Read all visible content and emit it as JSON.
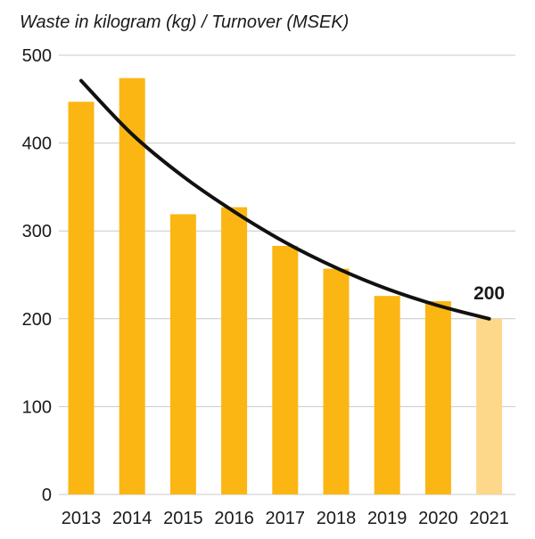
{
  "chart_data": {
    "type": "bar",
    "title": "Waste in kilogram (kg) / Turnover (MSEK)",
    "xlabel": "",
    "ylabel": "",
    "categories": [
      "2013",
      "2014",
      "2015",
      "2016",
      "2017",
      "2018",
      "2019",
      "2020",
      "2021"
    ],
    "values": [
      447,
      474,
      319,
      327,
      283,
      257,
      226,
      220,
      200
    ],
    "ylim": [
      0,
      500
    ],
    "yticks": [
      0,
      100,
      200,
      300,
      400,
      500
    ],
    "ytick_labels": [
      "0",
      "100",
      "200",
      "300",
      "400",
      "500"
    ],
    "grid": true,
    "colors": {
      "bar": "#fbb614",
      "bar_highlight": "#fdd88a",
      "trend": "#111111",
      "grid": "#c8c8c8"
    },
    "highlight_index": 8,
    "trend_line": {
      "x": [
        "2013",
        "2014",
        "2015",
        "2016",
        "2017",
        "2018",
        "2019",
        "2020",
        "2021"
      ],
      "values": [
        471,
        410,
        362,
        322,
        287,
        258,
        234,
        215,
        200
      ]
    },
    "annotations": [
      {
        "category": "2021",
        "value": 200,
        "label": "200"
      }
    ]
  }
}
